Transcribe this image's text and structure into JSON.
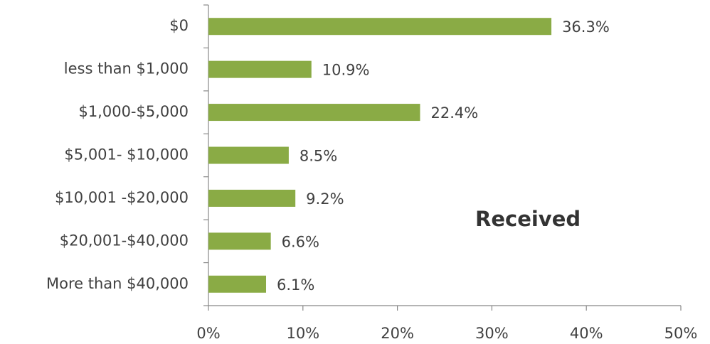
{
  "chart_data": {
    "type": "bar",
    "orientation": "horizontal",
    "categories": [
      "$0",
      "less than $1,000",
      "$1,000-$5,000",
      "$5,001- $10,000",
      "$10,001 -$20,000",
      "$20,001-$40,000",
      "More than $40,000"
    ],
    "values": [
      36.3,
      10.9,
      22.4,
      8.5,
      9.2,
      6.6,
      6.1
    ],
    "value_labels": [
      "36.3%",
      "10.9%",
      "22.4%",
      "8.5%",
      "9.2%",
      "6.6%",
      "6.1%"
    ],
    "color": "#8aab45",
    "xlim": [
      0,
      50
    ],
    "xticks": [
      {
        "value": 0,
        "label": "0%"
      },
      {
        "value": 10,
        "label": "10%"
      },
      {
        "value": 20,
        "label": "20%"
      },
      {
        "value": 30,
        "label": "30%"
      },
      {
        "value": 40,
        "label": "40%"
      },
      {
        "value": 50,
        "label": "50%"
      }
    ],
    "annotation": "Received"
  }
}
